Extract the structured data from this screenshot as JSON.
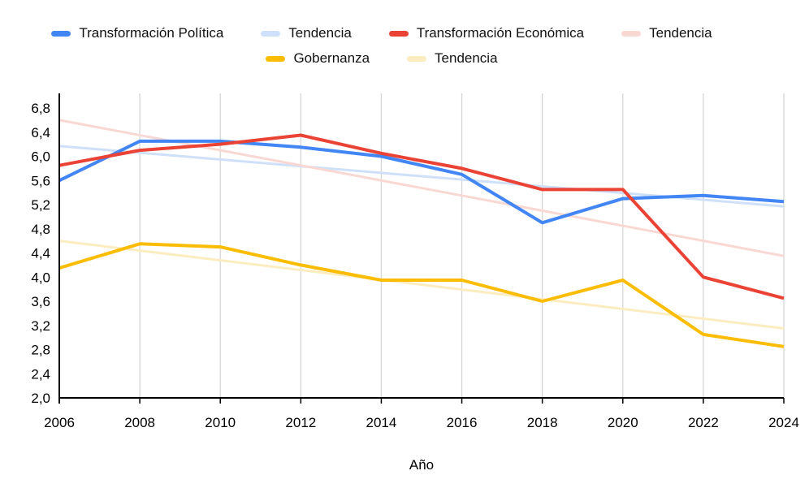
{
  "legend": {
    "items": [
      {
        "label": "Transformación Política",
        "color": "#4285F4"
      },
      {
        "label": "Tendencia",
        "color": "#CFE0FA"
      },
      {
        "label": "Transformación Económica",
        "color": "#EA4335"
      },
      {
        "label": "Tendencia",
        "color": "#F9D8D4"
      },
      {
        "label": "Gobernanza",
        "color": "#FBBC04"
      },
      {
        "label": "Tendencia",
        "color": "#FBEDC0"
      }
    ]
  },
  "chart_data": {
    "type": "line",
    "title": "",
    "xlabel": "Año",
    "ylabel": "",
    "x": [
      2006,
      2008,
      2010,
      2012,
      2014,
      2016,
      2018,
      2020,
      2022,
      2024
    ],
    "x_tick_labels": [
      "2006",
      "2008",
      "2010",
      "2012",
      "2014",
      "2016",
      "2018",
      "2020",
      "2022",
      "2024"
    ],
    "ylim": [
      2.0,
      7.05
    ],
    "yticks": [
      2.0,
      2.4,
      2.8,
      3.2,
      3.6,
      4.0,
      4.4,
      4.8,
      5.2,
      5.6,
      6.0,
      6.4,
      6.8
    ],
    "y_tick_labels": [
      "2,0",
      "2,4",
      "2,8",
      "3,2",
      "3,6",
      "4,0",
      "4,4",
      "4,8",
      "5,2",
      "5,6",
      "6,0",
      "6,4",
      "6,8"
    ],
    "grid": "vertical-only",
    "legend_position": "top",
    "series": [
      {
        "name": "Transformación Política",
        "color": "#4285F4",
        "values": [
          5.6,
          6.25,
          6.25,
          6.15,
          6.0,
          5.7,
          4.9,
          5.3,
          5.35,
          5.25
        ]
      },
      {
        "name": "Transformación Económica",
        "color": "#EA4335",
        "values": [
          5.85,
          6.1,
          6.2,
          6.35,
          6.05,
          5.8,
          5.45,
          5.45,
          4.0,
          3.65
        ]
      },
      {
        "name": "Gobernanza",
        "color": "#FBBC04",
        "values": [
          4.15,
          4.55,
          4.5,
          4.2,
          3.95,
          3.95,
          3.6,
          3.95,
          3.05,
          2.85
        ]
      }
    ],
    "trendlines": [
      {
        "name": "Tendencia (Transformación Política)",
        "color": "#CFE0FA",
        "shape": "linear",
        "endpoints": [
          6.17,
          5.17
        ]
      },
      {
        "name": "Tendencia (Transformación Económica)",
        "color": "#F9D8D4",
        "shape": "linear",
        "endpoints": [
          6.6,
          4.35
        ]
      },
      {
        "name": "Tendencia (Gobernanza)",
        "color": "#FBEDC0",
        "shape": "linear",
        "endpoints": [
          4.6,
          3.15
        ]
      }
    ],
    "axis_color": "#000000",
    "gridline_color": "#D6D6D6"
  }
}
